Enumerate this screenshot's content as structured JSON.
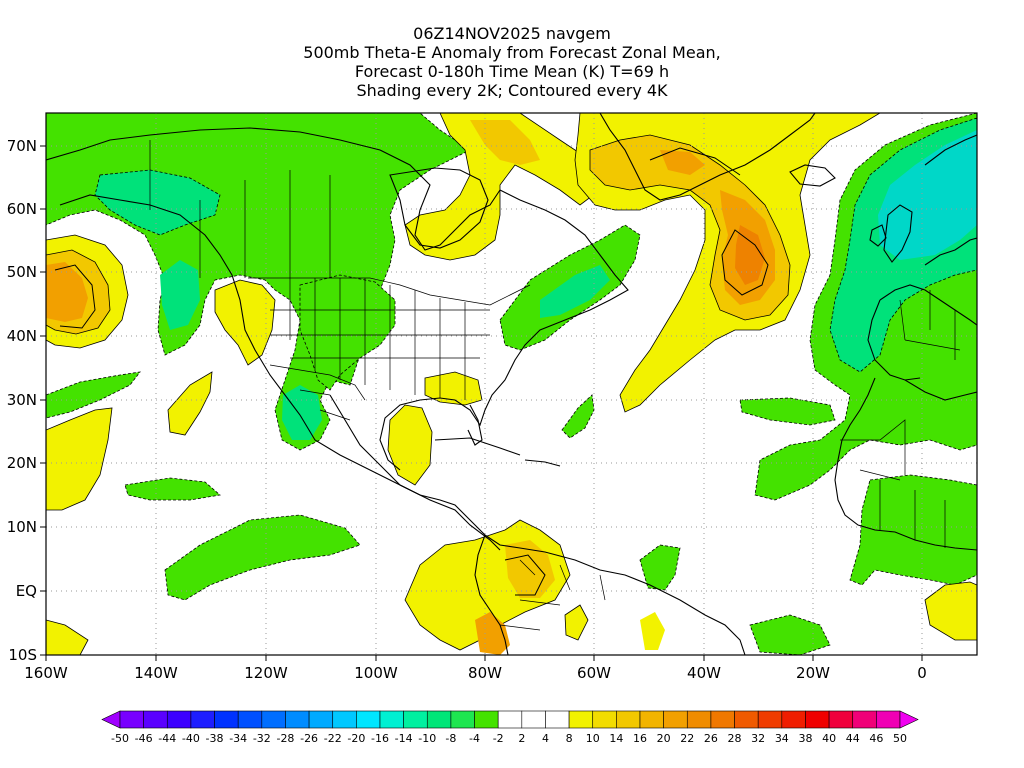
{
  "title_lines": [
    "06Z14NOV2025 navgem",
    "500mb Theta-E Anomaly from Forecast Zonal Mean,",
    "Forecast 0-180h Time Mean (K) T=69 h",
    "Shading every 2K; Contoured every 4K"
  ],
  "map": {
    "lon_range": [
      -160,
      10
    ],
    "lat_range": [
      -10,
      75
    ],
    "lat_ticks": [
      "70N",
      "60N",
      "50N",
      "40N",
      "30N",
      "20N",
      "10N",
      "EQ",
      "10S"
    ],
    "lon_ticks": [
      "160W",
      "140W",
      "120W",
      "100W",
      "80W",
      "60W",
      "40W",
      "20W",
      "0"
    ]
  },
  "colors": {
    "neg_green": "#44e200",
    "neg_teal": "#00e27a",
    "neg_cyan": "#00d7c8",
    "pos_yellow": "#f2f200",
    "pos_gold": "#f2c800",
    "pos_orange": "#f2a000",
    "pos_dark_orange": "#ee8200"
  },
  "colorbar": {
    "labels": [
      "-50",
      "-46",
      "-44",
      "-40",
      "-38",
      "-34",
      "-32",
      "-28",
      "-26",
      "-22",
      "-20",
      "-16",
      "-14",
      "-10",
      "-8",
      "-4",
      "-2",
      "2",
      "4",
      "8",
      "10",
      "14",
      "16",
      "20",
      "22",
      "26",
      "28",
      "32",
      "34",
      "38",
      "40",
      "44",
      "46",
      "50"
    ],
    "colors": [
      "#a000ff",
      "#7800ff",
      "#5a00ff",
      "#3c00ff",
      "#1e1eff",
      "#0032ff",
      "#0050ff",
      "#006eff",
      "#008cff",
      "#00aaff",
      "#00c8ff",
      "#00e6ff",
      "#00f0d2",
      "#00f0a0",
      "#00e678",
      "#1ee650",
      "#44e200",
      "#ffffff",
      "#ffffff",
      "#ffffff",
      "#f2f200",
      "#f2dc00",
      "#f2c800",
      "#f2b400",
      "#f2a000",
      "#f08c00",
      "#f07800",
      "#f05a00",
      "#f03c00",
      "#f01e00",
      "#f00000",
      "#f0003c",
      "#f00078",
      "#f000b4",
      "#f000f0"
    ]
  }
}
